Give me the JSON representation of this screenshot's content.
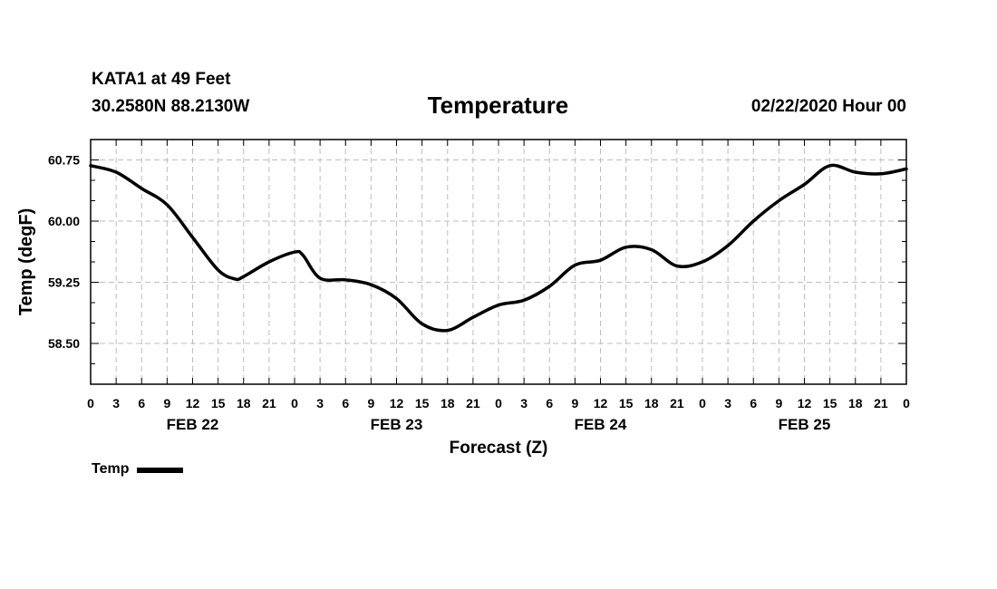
{
  "header": {
    "station": "KATA1 at 49 Feet",
    "coordinates": "30.2580N 88.2130W",
    "title": "Temperature",
    "datetime": "02/22/2020 Hour 00"
  },
  "chart_data": {
    "type": "line",
    "title": "Temperature",
    "xlabel": "Forecast (Z)",
    "ylabel": "Temp (degF)",
    "ylim": [
      58.0,
      61.0
    ],
    "yticks": [
      58.5,
      59.25,
      60.0,
      60.75
    ],
    "ytick_labels": [
      "58.50",
      "59.25",
      "60.00",
      "60.75"
    ],
    "xlim": [
      0,
      96
    ],
    "xtick_hours": [
      0,
      3,
      6,
      9,
      12,
      15,
      18,
      21,
      24,
      27,
      30,
      33,
      36,
      39,
      42,
      45,
      48,
      51,
      54,
      57,
      60,
      63,
      66,
      69,
      72,
      75,
      78,
      81,
      84,
      87,
      90,
      93,
      96
    ],
    "xtick_labels": [
      "0",
      "3",
      "6",
      "9",
      "12",
      "15",
      "18",
      "21",
      "0",
      "3",
      "6",
      "9",
      "12",
      "15",
      "18",
      "21",
      "0",
      "3",
      "6",
      "9",
      "12",
      "15",
      "18",
      "21",
      "0",
      "3",
      "6",
      "9",
      "12",
      "15",
      "18",
      "21",
      "0"
    ],
    "day_labels": [
      {
        "hour": 12,
        "label": "FEB 22"
      },
      {
        "hour": 36,
        "label": "FEB 23"
      },
      {
        "hour": 60,
        "label": "FEB 24"
      },
      {
        "hour": 84,
        "label": "FEB 25"
      }
    ],
    "grid": true,
    "legend": {
      "position": "bottom-left",
      "entries": [
        "Temp"
      ]
    },
    "series": [
      {
        "name": "Temp",
        "x": [
          0,
          3,
          6,
          9,
          12,
          15,
          17,
          18,
          21,
          24,
          25,
          27,
          30,
          33,
          36,
          39,
          42,
          45,
          48,
          51,
          54,
          57,
          60,
          63,
          66,
          69,
          72,
          75,
          78,
          81,
          84,
          87,
          90,
          93,
          96
        ],
        "y": [
          60.68,
          60.6,
          60.4,
          60.2,
          59.8,
          59.4,
          59.29,
          59.32,
          59.5,
          59.62,
          59.58,
          59.3,
          59.28,
          59.22,
          59.05,
          58.74,
          58.66,
          58.82,
          58.97,
          59.03,
          59.2,
          59.46,
          59.52,
          59.68,
          59.65,
          59.45,
          59.5,
          59.7,
          60.0,
          60.25,
          60.45,
          60.68,
          60.6,
          60.58,
          60.64
        ]
      }
    ]
  }
}
